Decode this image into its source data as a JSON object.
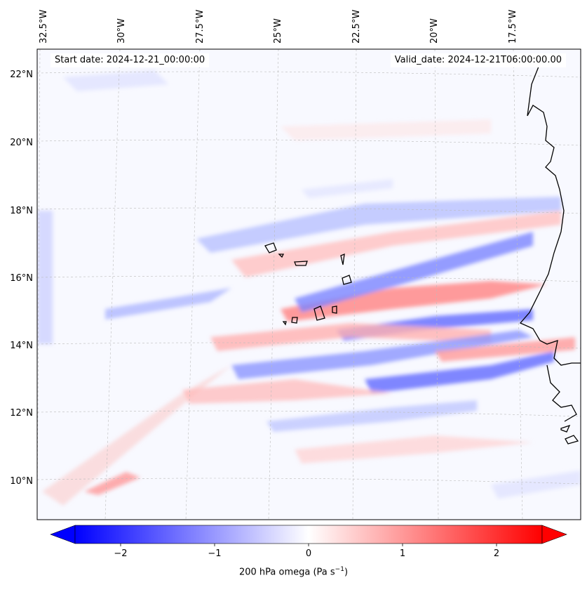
{
  "map": {
    "start_date_text": "Start date: 2024-12-21_00:00:00",
    "valid_date_text": "Valid_date: 2024-12-21T06:00:00.00",
    "lon_labels": [
      "32.5°W",
      "30°W",
      "27.5°W",
      "25°W",
      "22.5°W",
      "20°W",
      "17.5°W"
    ],
    "lat_labels": [
      "22°N",
      "20°N",
      "18°N",
      "16°N",
      "14°N",
      "12°N",
      "10°N"
    ],
    "field": "200 hPa omega",
    "colors": {
      "negative": "#0000ff",
      "zero": "#ffffff",
      "positive": "#ff0000",
      "coast": "#000000"
    }
  },
  "colorbar": {
    "label": "200 hPa omega (Pa s",
    "label_superscript": "−1",
    "label_close": ")",
    "ticks": [
      "−2",
      "−1",
      "0",
      "1",
      "2"
    ],
    "range": [
      -2.7,
      2.7
    ]
  }
}
